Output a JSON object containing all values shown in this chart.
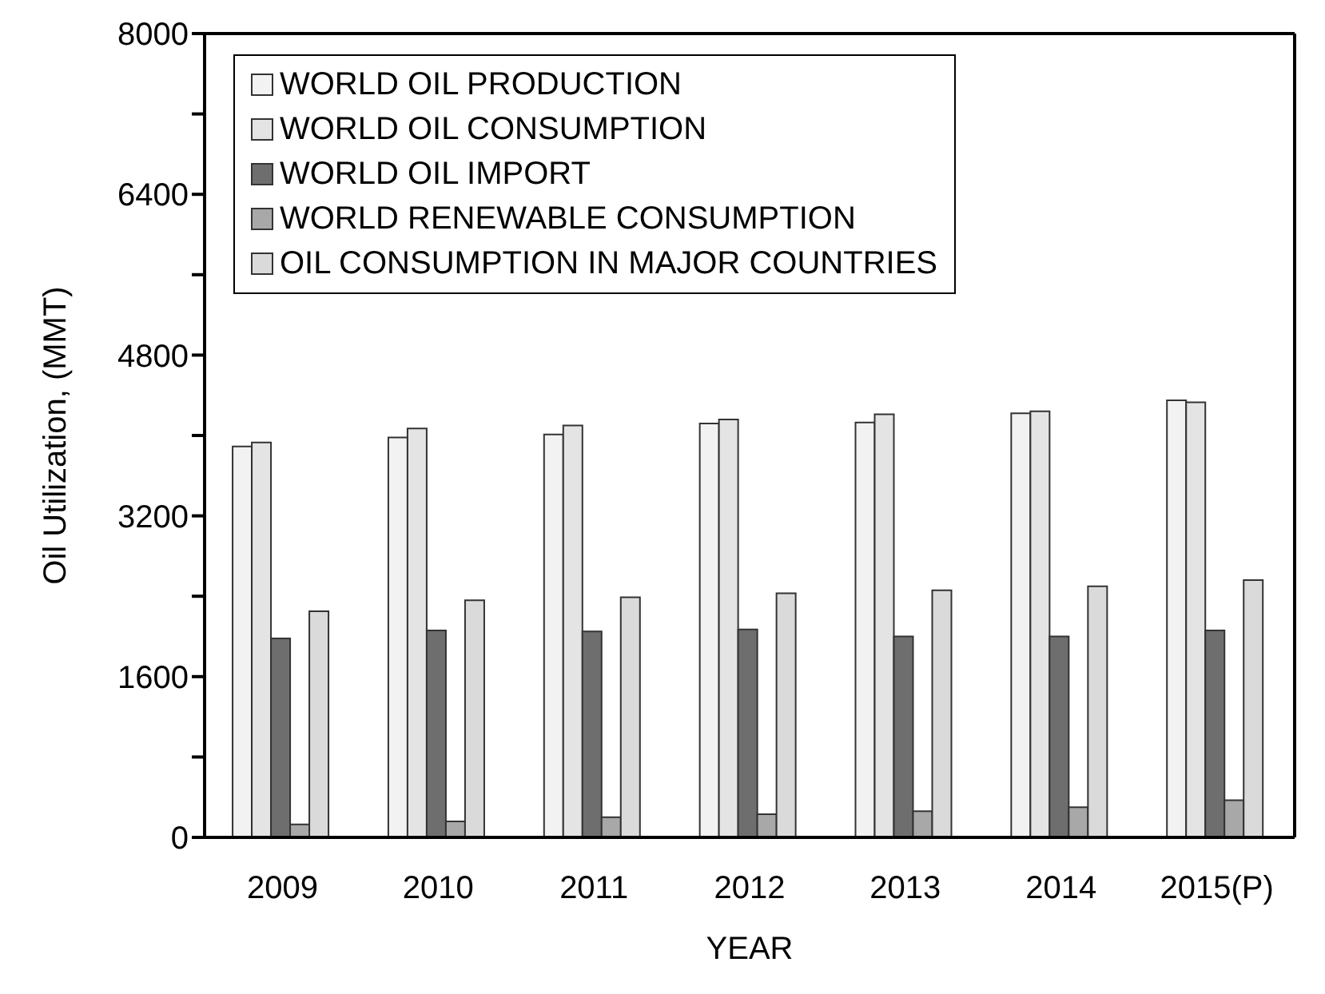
{
  "chart_data": {
    "type": "bar",
    "xlabel": "YEAR",
    "ylabel": "Oil Utilization, (MMT)",
    "categories": [
      "2009",
      "2010",
      "2011",
      "2012",
      "2013",
      "2014",
      "2015(P)"
    ],
    "series": [
      {
        "name": "WORLD OIL PRODUCTION",
        "color": "#f2f2f2",
        "values": [
          3890,
          3980,
          4010,
          4120,
          4130,
          4220,
          4350
        ]
      },
      {
        "name": "WORLD OIL CONSUMPTION",
        "color": "#e4e4e4",
        "values": [
          3930,
          4070,
          4100,
          4160,
          4210,
          4240,
          4330
        ]
      },
      {
        "name": "WORLD OIL IMPORT",
        "color": "#6e6e6e",
        "values": [
          1980,
          2060,
          2050,
          2070,
          2000,
          2000,
          2060
        ]
      },
      {
        "name": "WORLD RENEWABLE CONSUMPTION",
        "color": "#a8a8a8",
        "values": [
          130,
          160,
          200,
          230,
          260,
          300,
          370
        ]
      },
      {
        "name": "OIL CONSUMPTION IN MAJOR COUNTRIES",
        "color": "#dadada",
        "values": [
          2250,
          2360,
          2390,
          2430,
          2460,
          2500,
          2560
        ]
      }
    ],
    "ylim": [
      0,
      8000
    ],
    "yticks": [
      0,
      {
        "value": 800,
        "label": null
      },
      1600,
      {
        "value": 2400,
        "label": null
      },
      3200,
      {
        "value": 4000,
        "label": null
      },
      4800,
      {
        "value": 5600,
        "label": null
      },
      6400,
      {
        "value": 7200,
        "label": null
      },
      8000
    ],
    "grid": false,
    "legend": "top left"
  }
}
